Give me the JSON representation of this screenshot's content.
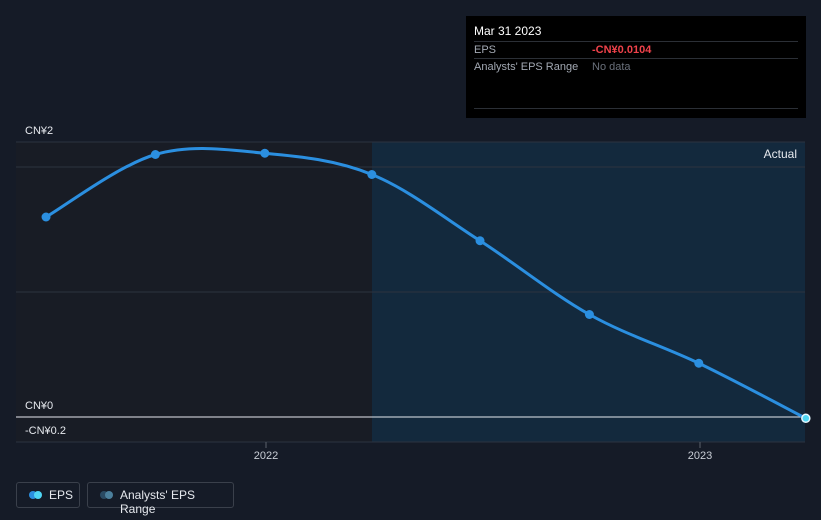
{
  "chart_data": {
    "type": "line",
    "series": [
      {
        "name": "EPS",
        "x": [
          "2021-06-30",
          "2021-09-30",
          "2021-12-31",
          "2022-03-31",
          "2022-06-30",
          "2022-09-30",
          "2022-12-31",
          "2023-03-31"
        ],
        "values": [
          1.6,
          2.1,
          2.11,
          1.94,
          1.41,
          0.82,
          0.43,
          -0.0104
        ]
      }
    ],
    "y_tick_labels": [
      "CN¥2",
      "CN¥0",
      "-CN¥0.2"
    ],
    "x_tick_labels": [
      "2022",
      "2023"
    ],
    "ylim": [
      -0.2,
      2.2
    ],
    "region_label": "Actual",
    "grid": true
  },
  "tooltip": {
    "date": "Mar 31 2023",
    "rows": [
      {
        "key": "EPS",
        "value": "-CN¥0.0104"
      },
      {
        "key": "Analysts' EPS Range",
        "value": "No data"
      }
    ]
  },
  "legend": {
    "items": [
      {
        "label": "EPS",
        "colors": [
          "#4fd6f4",
          "#2b8fe0"
        ]
      },
      {
        "label": "Analysts' EPS Range",
        "colors": [
          "#4b7f9c",
          "#2a4a63"
        ]
      }
    ]
  },
  "colors": {
    "line": "#2b8fe0",
    "background": "#151b27",
    "forecast_region": "#13293d",
    "past_region": "#181c25",
    "negative": "#f0424b"
  }
}
